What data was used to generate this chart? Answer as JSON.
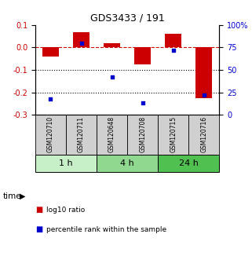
{
  "title": "GDS3433 / 191",
  "samples": [
    "GSM120710",
    "GSM120711",
    "GSM120648",
    "GSM120708",
    "GSM120715",
    "GSM120716"
  ],
  "log10_ratio": [
    -0.04,
    0.068,
    0.018,
    -0.075,
    0.062,
    -0.225
  ],
  "percentile_rank": [
    18,
    80,
    42,
    13,
    72,
    22
  ],
  "time_groups": [
    {
      "label": "1 h",
      "color": "#c8f0c8",
      "start": 0,
      "end": 1
    },
    {
      "label": "4 h",
      "color": "#90d890",
      "start": 2,
      "end": 3
    },
    {
      "label": "24 h",
      "color": "#50c050",
      "start": 4,
      "end": 5
    }
  ],
  "bar_color": "#cc0000",
  "scatter_color": "#0000cc",
  "ylim_left": [
    -0.3,
    0.1
  ],
  "ylim_right": [
    0,
    100
  ],
  "yticks_left": [
    -0.3,
    -0.2,
    -0.1,
    0.0,
    0.1
  ],
  "yticks_right": [
    0,
    25,
    50,
    75,
    100
  ],
  "hline_y": 0.0,
  "dotted_lines": [
    -0.1,
    -0.2
  ],
  "bar_width": 0.55,
  "background_color": "#ffffff",
  "sample_box_color": "#d0d0d0",
  "legend_items": [
    {
      "label": "log10 ratio",
      "color": "#cc0000"
    },
    {
      "label": "percentile rank within the sample",
      "color": "#0000cc"
    }
  ]
}
